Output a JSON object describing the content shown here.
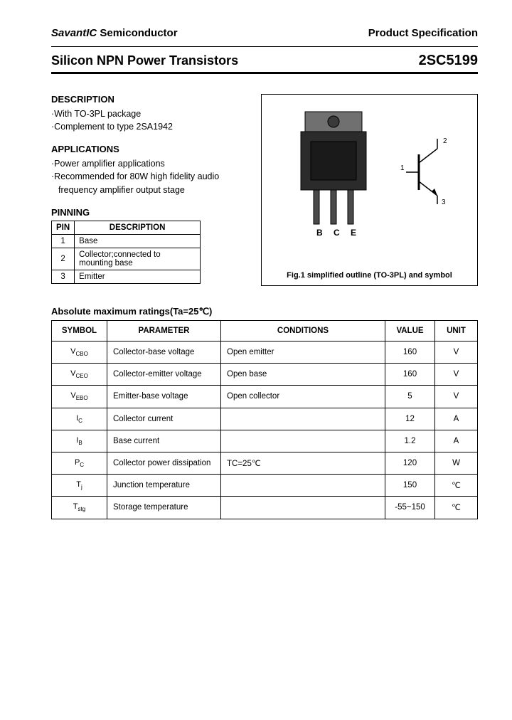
{
  "header": {
    "company_italic": "SavantIC",
    "company_rest": " Semiconductor",
    "spec": "Product Specification"
  },
  "title": {
    "left": "Silicon NPN Power Transistors",
    "right": "2SC5199"
  },
  "description": {
    "head": "DESCRIPTION",
    "items": [
      "·With TO-3PL package",
      "·Complement to type 2SA1942"
    ]
  },
  "applications": {
    "head": "APPLICATIONS",
    "items": [
      "·Power amplifier applications",
      "·Recommended for 80W high fidelity audio",
      "  frequency amplifier output stage"
    ]
  },
  "pinning": {
    "head": "PINNING",
    "cols": [
      "PIN",
      "DESCRIPTION"
    ],
    "rows": [
      {
        "pin": "1",
        "desc": "Base"
      },
      {
        "pin": "2",
        "desc": "Collector;connected to mounting base"
      },
      {
        "pin": "3",
        "desc": "Emitter"
      }
    ]
  },
  "figure": {
    "pin_labels": {
      "b": "B",
      "c": "C",
      "e": "E"
    },
    "sym_labels": {
      "1": "1",
      "2": "2",
      "3": "3"
    },
    "caption": "Fig.1 simplified outline (TO-3PL) and symbol",
    "colors": {
      "body": "#2b2b2b",
      "tab": "#707070",
      "lead": "#4a4a4a",
      "stroke": "#000000"
    }
  },
  "ratings": {
    "head": "Absolute maximum ratings(Ta=25℃)",
    "cols": [
      "SYMBOL",
      "PARAMETER",
      "CONDITIONS",
      "VALUE",
      "UNIT"
    ],
    "rows": [
      {
        "sym": "V",
        "sub": "CBO",
        "param": "Collector-base voltage",
        "cond": "Open emitter",
        "val": "160",
        "unit": "V"
      },
      {
        "sym": "V",
        "sub": "CEO",
        "param": "Collector-emitter voltage",
        "cond": "Open base",
        "val": "160",
        "unit": "V"
      },
      {
        "sym": "V",
        "sub": "EBO",
        "param": "Emitter-base voltage",
        "cond": "Open collector",
        "val": "5",
        "unit": "V"
      },
      {
        "sym": "I",
        "sub": "C",
        "param": "Collector current",
        "cond": "",
        "val": "12",
        "unit": "A"
      },
      {
        "sym": "I",
        "sub": "B",
        "param": "Base current",
        "cond": "",
        "val": "1.2",
        "unit": "A"
      },
      {
        "sym": "P",
        "sub": "C",
        "param": "Collector power dissipation",
        "cond": "TC=25℃",
        "val": "120",
        "unit": "W"
      },
      {
        "sym": "T",
        "sub": "j",
        "param": "Junction temperature",
        "cond": "",
        "val": "150",
        "unit": "℃"
      },
      {
        "sym": "T",
        "sub": "stg",
        "param": "Storage temperature",
        "cond": "",
        "val": "-55~150",
        "unit": "℃"
      }
    ]
  }
}
